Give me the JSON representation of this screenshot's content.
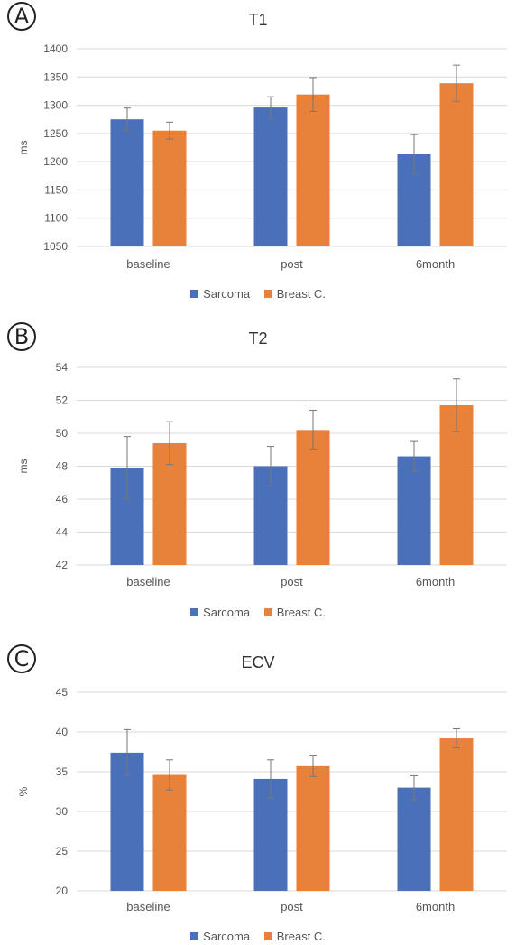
{
  "panels": [
    {
      "letter": "A",
      "chart_data": {
        "type": "bar",
        "title": "T1",
        "ylabel": "ms",
        "xlabel": "",
        "categories": [
          "baseline",
          "post",
          "6month"
        ],
        "ylim": [
          1050,
          1400
        ],
        "yticks": [
          1050,
          1100,
          1150,
          1200,
          1250,
          1300,
          1350,
          1400
        ],
        "grid": true,
        "legend_position": "bottom",
        "series": [
          {
            "name": "Sarcoma",
            "color": "#4a70b9",
            "values": [
              1275,
              1296,
              1213
            ],
            "errors": [
              20,
              19,
              35
            ]
          },
          {
            "name": "Breast C.",
            "color": "#e8823a",
            "values": [
              1255,
              1319,
              1339
            ],
            "errors": [
              15,
              30,
              32
            ]
          }
        ]
      }
    },
    {
      "letter": "B",
      "chart_data": {
        "type": "bar",
        "title": "T2",
        "ylabel": "ms",
        "xlabel": "",
        "categories": [
          "baseline",
          "post",
          "6month"
        ],
        "ylim": [
          42,
          54
        ],
        "yticks": [
          42,
          44,
          46,
          48,
          50,
          52,
          54
        ],
        "grid": true,
        "legend_position": "bottom",
        "series": [
          {
            "name": "Sarcoma",
            "color": "#4a70b9",
            "values": [
              47.9,
              48.0,
              48.6
            ],
            "errors": [
              1.9,
              1.2,
              0.9
            ]
          },
          {
            "name": "Breast C.",
            "color": "#e8823a",
            "values": [
              49.4,
              50.2,
              51.7
            ],
            "errors": [
              1.3,
              1.2,
              1.6
            ]
          }
        ]
      }
    },
    {
      "letter": "C",
      "chart_data": {
        "type": "bar",
        "title": "ECV",
        "ylabel": "%",
        "xlabel": "",
        "categories": [
          "baseline",
          "post",
          "6month"
        ],
        "ylim": [
          20,
          45
        ],
        "yticks": [
          20,
          25,
          30,
          35,
          40,
          45
        ],
        "grid": true,
        "legend_position": "bottom",
        "series": [
          {
            "name": "Sarcoma",
            "color": "#4a70b9",
            "values": [
              37.4,
              34.1,
              33.0
            ],
            "errors": [
              2.9,
              2.4,
              1.5
            ]
          },
          {
            "name": "Breast C.",
            "color": "#e8823a",
            "values": [
              34.6,
              35.7,
              39.2
            ],
            "errors": [
              1.9,
              1.3,
              1.2
            ]
          }
        ]
      }
    }
  ]
}
